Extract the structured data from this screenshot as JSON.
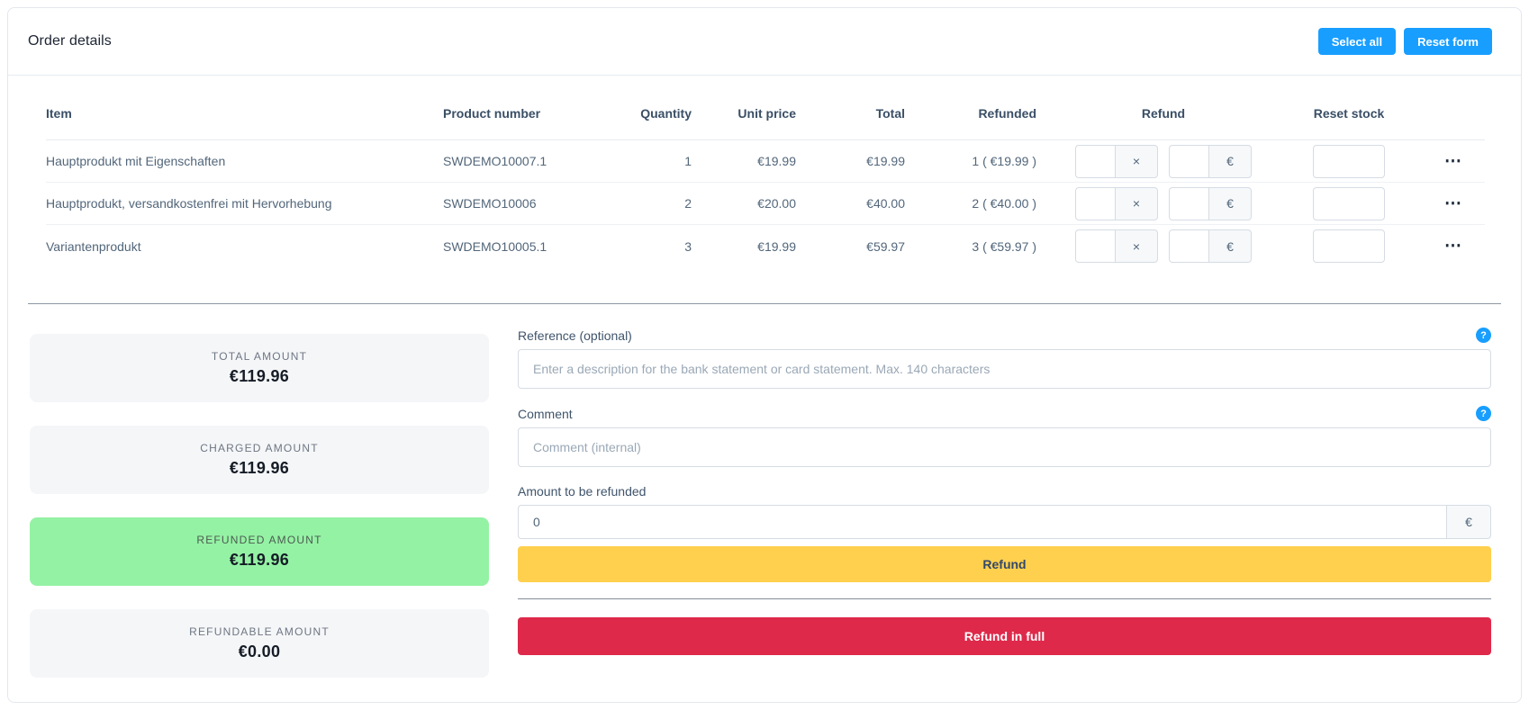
{
  "header": {
    "title": "Order details",
    "select_all_label": "Select all",
    "reset_form_label": "Reset form"
  },
  "table": {
    "columns": [
      "Item",
      "Product number",
      "Quantity",
      "Unit price",
      "Total",
      "Refunded",
      "Refund",
      "Reset stock"
    ],
    "refund_multiplier_suffix": "×",
    "refund_currency_suffix": "€",
    "rows": [
      {
        "item": "Hauptprodukt mit Eigenschaften",
        "product_number": "SWDEMO10007.1",
        "quantity": "1",
        "unit_price": "€19.99",
        "total": "€19.99",
        "refunded": "1 ( €19.99 )",
        "refund_quantity_value": "",
        "refund_amount_value": "",
        "reset_stock_value": ""
      },
      {
        "item": "Hauptprodukt, versandkostenfrei mit Hervorhebung",
        "product_number": "SWDEMO10006",
        "quantity": "2",
        "unit_price": "€20.00",
        "total": "€40.00",
        "refunded": "2 ( €40.00 )",
        "refund_quantity_value": "",
        "refund_amount_value": "",
        "reset_stock_value": ""
      },
      {
        "item": "Variantenprodukt",
        "product_number": "SWDEMO10005.1",
        "quantity": "3",
        "unit_price": "€19.99",
        "total": "€59.97",
        "refunded": "3 ( €59.97 )",
        "refund_quantity_value": "",
        "refund_amount_value": "",
        "reset_stock_value": ""
      }
    ]
  },
  "icons": {
    "context_menu": "⋯",
    "help": "?"
  },
  "summary": {
    "cards": [
      {
        "label": "TOTAL AMOUNT",
        "value": "€119.96",
        "variant": "default"
      },
      {
        "label": "CHARGED AMOUNT",
        "value": "€119.96",
        "variant": "default"
      },
      {
        "label": "REFUNDED AMOUNT",
        "value": "€119.96",
        "variant": "success"
      },
      {
        "label": "REFUNDABLE AMOUNT",
        "value": "€0.00",
        "variant": "default"
      }
    ]
  },
  "form": {
    "reference": {
      "label": "Reference (optional)",
      "placeholder": "Enter a description for the bank statement or card statement. Max. 140 characters",
      "value": ""
    },
    "comment": {
      "label": "Comment",
      "placeholder": "Comment (internal)",
      "value": ""
    },
    "amount": {
      "label": "Amount to be refunded",
      "value": "0",
      "suffix": "€"
    },
    "refund_button_label": "Refund",
    "refund_full_button_label": "Refund in full"
  },
  "colors": {
    "accent_blue": "#189eff",
    "warning_yellow": "#ffd04e",
    "danger_red": "#de294b",
    "success_green": "#94f2a4",
    "neutral_card": "#f5f6f8"
  }
}
